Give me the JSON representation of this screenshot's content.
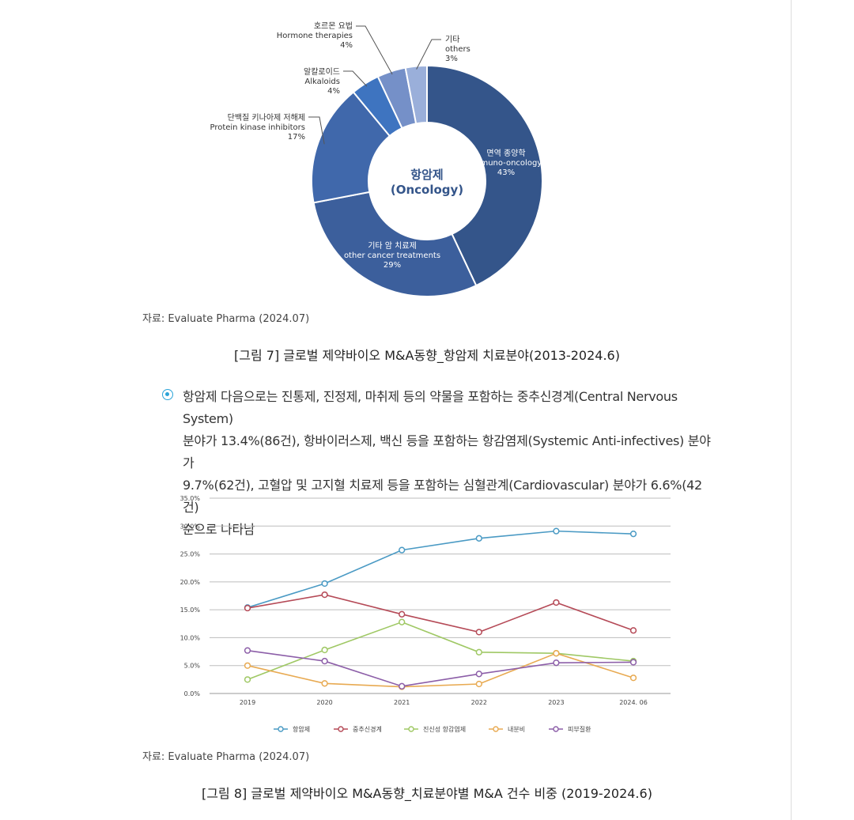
{
  "figure7": {
    "center_label_ko": "항암제",
    "center_label_en": "(Oncology)",
    "source": "자료: Evaluate Pharma (2024.07)",
    "caption": "[그림 7] 글로벌 제약바이오 M&A동향_항암제 치료분야(2013-2024.6)"
  },
  "bullet": {
    "lines": [
      "항암제 다음으로는 진통제, 진정제, 마취제 등의 약물을 포함하는 중추신경계(Central Nervous System)",
      "분야가 13.4%(86건), 항바이러스제, 백신 등을 포함하는 항감염제(Systemic Anti-infectives) 분야가",
      "9.7%(62건), 고혈압 및 고지혈 치료제 등을 포함하는 심혈관계(Cardiovascular) 분야가 6.6%(42건)",
      "순으로 나타남"
    ]
  },
  "figure8": {
    "source": "자료: Evaluate Pharma (2024.07)",
    "caption": "[그림 8] 글로벌 제약바이오 M&A동향_치료분야별 M&A 건수 비중 (2019-2024.6)"
  },
  "chart_data": [
    {
      "type": "pie",
      "donut": true,
      "slices": [
        {
          "name_ko": "면역 종양학",
          "name_en": "Immuno-oncology",
          "value": 43,
          "label": "43%",
          "color": "#34558a"
        },
        {
          "name_ko": "기타 암 치료제",
          "name_en": "other cancer treatments",
          "value": 29,
          "label": "29%",
          "color": "#3c5f9c"
        },
        {
          "name_ko": "단백질 키나아제 저해제",
          "name_en": "Protein kinase inhibitors",
          "value": 17,
          "label": "17%",
          "color": "#4068ab"
        },
        {
          "name_ko": "알칼로이드",
          "name_en": "Alkaloids",
          "value": 4,
          "label": "4%",
          "color": "#3e74c0"
        },
        {
          "name_ko": "호르몬 요법",
          "name_en": "Hormone therapies",
          "value": 4,
          "label": "4%",
          "color": "#7590c8"
        },
        {
          "name_ko": "기타",
          "name_en": "others",
          "value": 3,
          "label": "3%",
          "color": "#9aafda"
        }
      ]
    },
    {
      "type": "line",
      "categories": [
        "2019",
        "2020",
        "2021",
        "2022",
        "2023",
        "2024. 06"
      ],
      "ylim": [
        0,
        35
      ],
      "yticks": [
        {
          "value": 0,
          "label": "0.0%"
        },
        {
          "value": 5,
          "label": "5.0%"
        },
        {
          "value": 10,
          "label": "10.0%"
        },
        {
          "value": 15,
          "label": "15.0%"
        },
        {
          "value": 20,
          "label": "20.0%"
        },
        {
          "value": 25,
          "label": "25.0%"
        },
        {
          "value": 30,
          "label": "30.0%"
        },
        {
          "value": 35,
          "label": "35.0%"
        }
      ],
      "grid": true,
      "legend": "bottom",
      "series": [
        {
          "name": "항암제",
          "color": "#4a9ac4",
          "values": [
            15.4,
            19.7,
            25.7,
            27.8,
            29.1,
            28.6
          ]
        },
        {
          "name": "중추신경계",
          "color": "#b54a57",
          "values": [
            15.3,
            17.7,
            14.2,
            11.0,
            16.3,
            11.3
          ]
        },
        {
          "name": "진신성 항감염제",
          "color": "#9fc864",
          "values": [
            2.5,
            7.8,
            12.8,
            7.4,
            7.2,
            5.8
          ]
        },
        {
          "name": "내분비",
          "color": "#e8aa52",
          "values": [
            5.0,
            1.8,
            1.2,
            1.7,
            7.2,
            2.8
          ]
        },
        {
          "name": "피부질환",
          "color": "#8c5ea8",
          "values": [
            7.7,
            5.8,
            1.3,
            3.5,
            5.5,
            5.6
          ]
        }
      ]
    }
  ]
}
